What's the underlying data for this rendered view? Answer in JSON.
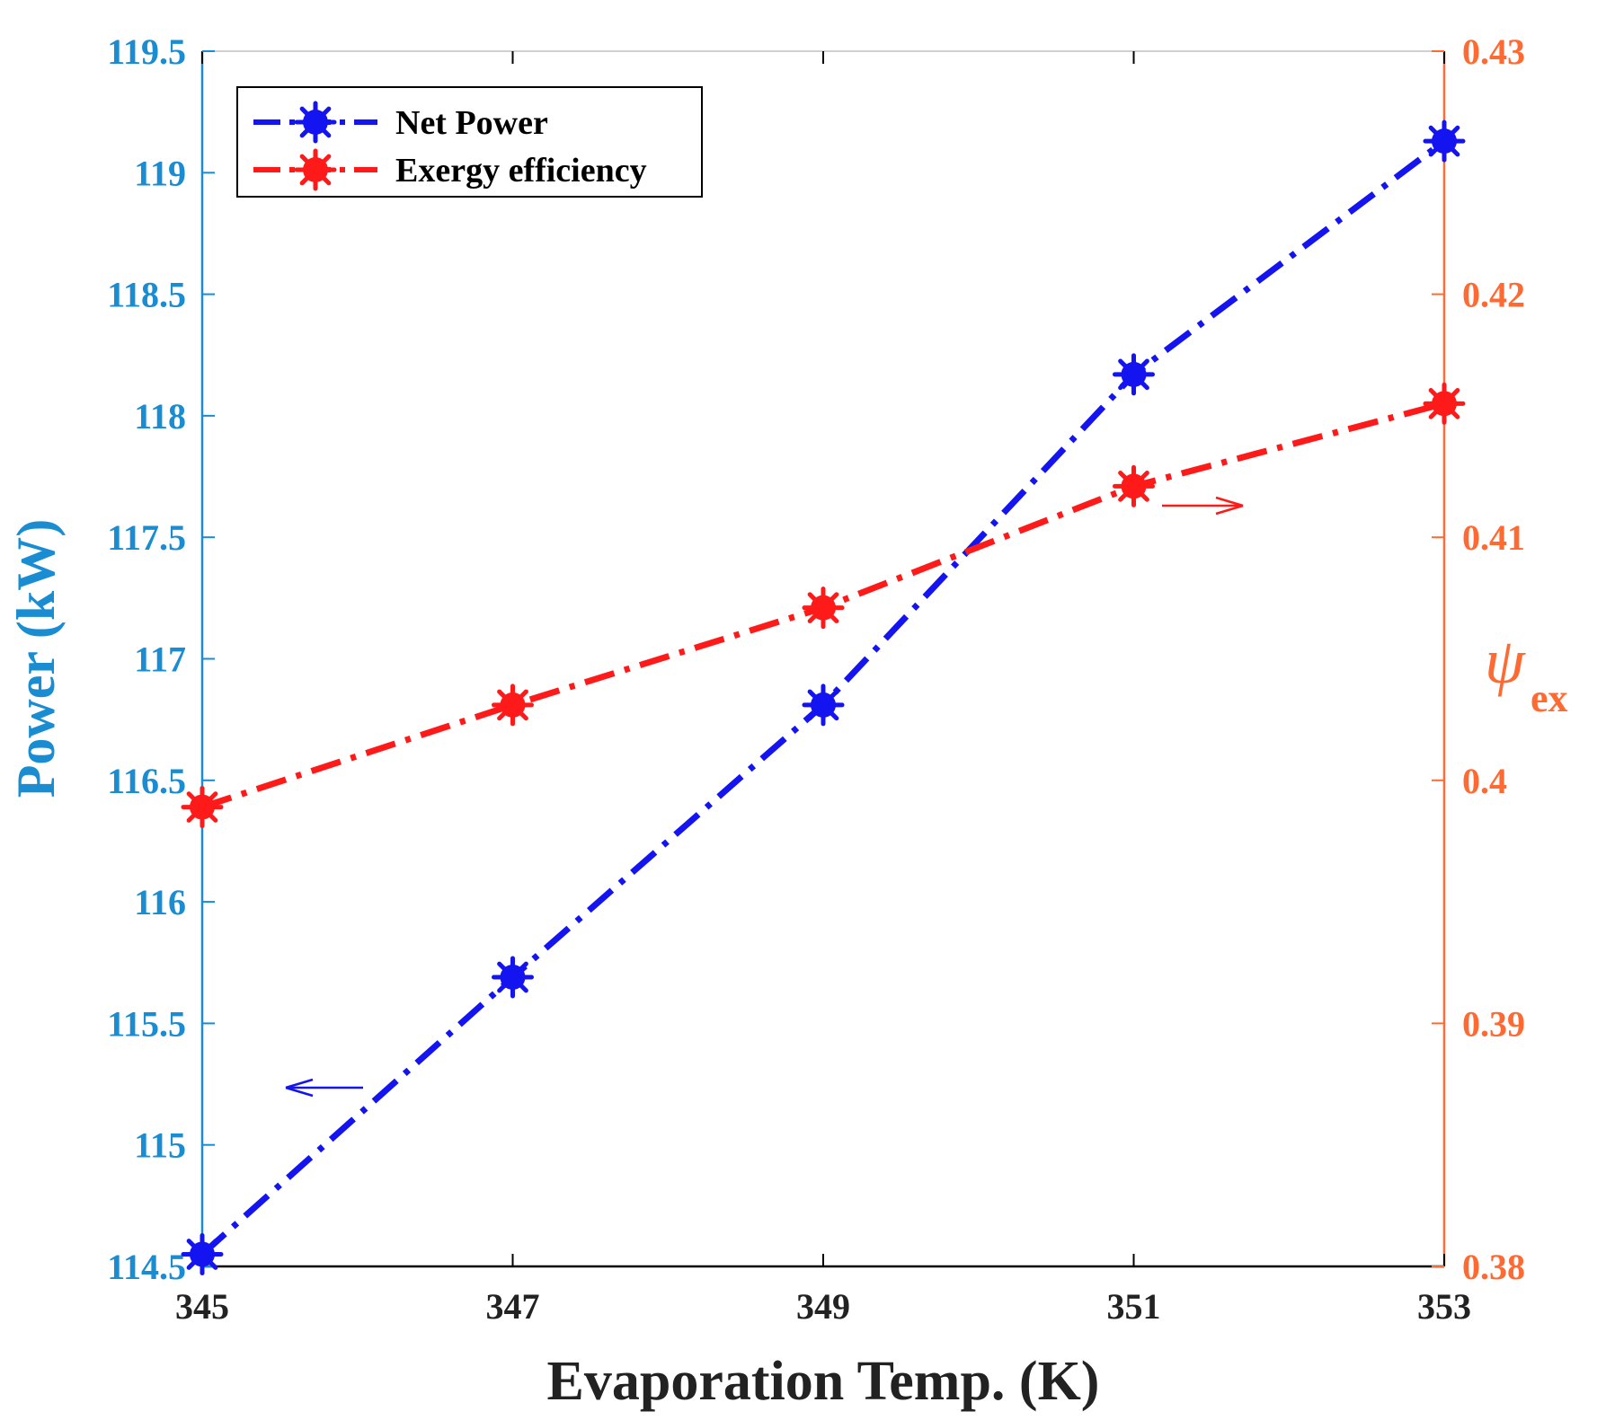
{
  "chart_data": {
    "type": "line",
    "title": "",
    "xlabel": "Evaporation Temp. (K)",
    "ylabel_left": "Power (kW)",
    "ylabel_right_symbol": "ψ",
    "ylabel_right_subscript": "ex",
    "x": [
      345,
      347,
      349,
      351,
      353
    ],
    "xticks": [
      "345",
      "347",
      "349",
      "351",
      "353"
    ],
    "xlim": [
      345,
      353
    ],
    "ylim_left": [
      114.5,
      119.5
    ],
    "ylim_right": [
      0.38,
      0.43
    ],
    "yticks_left": [
      "114.5",
      "115",
      "115.5",
      "116",
      "116.5",
      "117",
      "117.5",
      "118",
      "118.5",
      "119",
      "119.5"
    ],
    "yticks_right": [
      "0.38",
      "0.39",
      "0.4",
      "0.41",
      "0.42",
      "0.43"
    ],
    "grid": false,
    "legend_position": "top-left",
    "series": [
      {
        "name": "Net Power",
        "axis": "left",
        "color": "#1414f0",
        "values": [
          114.55,
          115.69,
          116.81,
          118.17,
          119.13
        ]
      },
      {
        "name": "Exergy efficiency",
        "axis": "right",
        "color": "#ff1a1a",
        "values": [
          0.3989,
          0.4031,
          0.4071,
          0.4121,
          0.4155
        ]
      }
    ],
    "colors": {
      "left_axis": "#1a8cd1",
      "right_axis": "#ff6a33",
      "frame": "#000000"
    }
  }
}
